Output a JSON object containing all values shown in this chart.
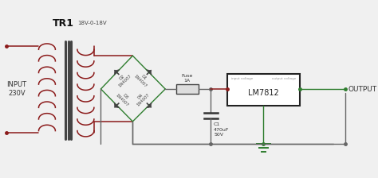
{
  "bg_color": "#f0f0f0",
  "wire_color": "#666666",
  "red_color": "#8B1A1A",
  "green_color": "#2e7d2e",
  "core_color": "#444444",
  "tr1_label": "TR1",
  "tr1_sublabel": "18V-0-18V",
  "input_label": "INPUT\n230V",
  "d2_label": "D2\n1N4007",
  "d1_label": "D1\n1N4007",
  "d3_label": "D3\n1N4007",
  "d4_label": "D4\n1N4007",
  "fuse_label": "Fuse\n1A",
  "cap_label": "C1\n470uF\n50V",
  "ic_label": "LM7812",
  "ic_in_label": "input voltage",
  "ic_out_label": "output voltage",
  "output_label": "OUTPUT",
  "lw": 1.0,
  "lw_red": 1.1,
  "lw_green": 1.0
}
